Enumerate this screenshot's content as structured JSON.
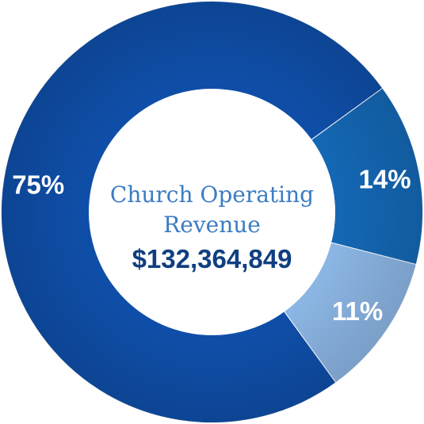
{
  "chart_data": {
    "type": "pie",
    "title": "Church Operating Revenue",
    "title_lines": [
      "Church Operating",
      "Revenue"
    ],
    "total": "$132,364,849",
    "slices": [
      {
        "label": "75%",
        "value": 75,
        "color": "#0f4ea8"
      },
      {
        "label": "14%",
        "value": 14,
        "color": "#1467b4"
      },
      {
        "label": "11%",
        "value": 11,
        "color": "#8bb5e3"
      }
    ],
    "start_angle_deg": 144,
    "legend": "none"
  }
}
